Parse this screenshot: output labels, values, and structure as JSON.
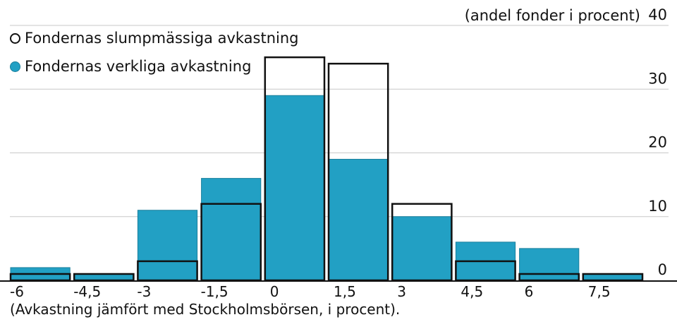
{
  "chart_data": {
    "type": "bar",
    "ylabel": "(andel fonder i procent)",
    "xlabel": "(Avkastning jämfört med Stockholmsbörsen, i procent).",
    "x_ticks": [
      "-6",
      "-4,5",
      "-3",
      "-1,5",
      "0",
      "1,5",
      "3",
      "4,5",
      "6",
      "7,5"
    ],
    "y_ticks": [
      "0",
      "10",
      "20",
      "30",
      "40"
    ],
    "ylim": [
      0,
      40
    ],
    "grid": true,
    "legend_position": "top-left",
    "series": [
      {
        "name": "Fondernas slumpmässiga avkastning",
        "style": "outline",
        "values": [
          1,
          1,
          3,
          12,
          35,
          34,
          12,
          3,
          1,
          1
        ]
      },
      {
        "name": "Fondernas verkliga avkastning",
        "style": "filled",
        "values": [
          2,
          1,
          11,
          16,
          29,
          19,
          10,
          6,
          5,
          1
        ]
      }
    ],
    "colors": {
      "filled": "#22a0c4",
      "filled_edge": "#1a7f9c",
      "outline": "#111111",
      "grid": "#c8c8c8"
    }
  }
}
